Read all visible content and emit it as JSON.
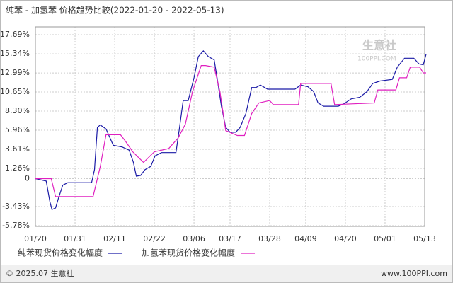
{
  "chart_data": {
    "type": "line",
    "title": "纯苯 - 加氢苯 价格趋势比较(2022-01-20 - 2022-05-13)",
    "watermark": [
      "生意社",
      "100PPI.COM"
    ],
    "footer_left": "© 2025.07 生意社",
    "footer_right": "www.100PPI.com",
    "xlim": [
      0,
      108
    ],
    "xticks": [
      {
        "value": 0,
        "label": "01/20"
      },
      {
        "value": 11,
        "label": "01/31"
      },
      {
        "value": 22,
        "label": "02/11"
      },
      {
        "value": 33,
        "label": "02/22"
      },
      {
        "value": 44,
        "label": "03/06"
      },
      {
        "value": 54,
        "label": "03/17"
      },
      {
        "value": 65,
        "label": "03/28"
      },
      {
        "value": 75,
        "label": "04/09"
      },
      {
        "value": 86,
        "label": "04/20"
      },
      {
        "value": 97,
        "label": "05/01"
      },
      {
        "value": 108,
        "label": "05/13"
      }
    ],
    "ylim": [
      -5.87,
      18.65
    ],
    "yticks": [
      {
        "value": 17.69,
        "label": "17.69%"
      },
      {
        "value": 15.34,
        "label": "15.34%"
      },
      {
        "value": 12.99,
        "label": "12.99%"
      },
      {
        "value": 10.65,
        "label": "10.65%"
      },
      {
        "value": 8.3,
        "label": "8.30%"
      },
      {
        "value": 5.96,
        "label": "5.96%"
      },
      {
        "value": 3.61,
        "label": "3.61%"
      },
      {
        "value": 1.26,
        "label": "1.26%"
      },
      0,
      {
        "value": -3.43,
        "label": "-3.43%"
      },
      {
        "value": -5.78,
        "label": "-5.78%"
      }
    ],
    "grid": true,
    "series": [
      {
        "name": "纯苯现货价格变化幅度",
        "color": "#1a1aa6",
        "x": [
          0,
          3,
          4,
          4.6,
          5.6,
          6.4,
          7.6,
          9,
          15.6,
          16.4,
          17.2,
          18,
          19.6,
          21.6,
          24,
          26,
          27.2,
          28,
          29.2,
          30.4,
          32,
          33.2,
          35,
          39,
          40,
          41,
          42.4,
          44,
          45.2,
          46.6,
          48,
          49.6,
          50.4,
          51.6,
          52.8,
          54,
          55.6,
          56.8,
          58.4,
          60,
          61.2,
          62.4,
          64.4,
          72,
          73.6,
          75.6,
          77.2,
          78.4,
          80,
          84,
          85.6,
          87.6,
          90,
          92,
          93.6,
          95.6,
          99,
          100.4,
          102.4,
          105,
          106.4,
          107.6,
          108.4
        ],
        "values": [
          0,
          -0.3,
          -2.8,
          -3.8,
          -3.6,
          -2.4,
          -0.8,
          -0.5,
          -0.5,
          1.1,
          6.3,
          6.6,
          6.1,
          4.1,
          3.9,
          3.5,
          2.0,
          0.3,
          0.4,
          1.1,
          1.5,
          2.8,
          3.2,
          3.2,
          6.3,
          9.6,
          9.6,
          12.4,
          15.0,
          15.7,
          15.0,
          14.6,
          12.4,
          8.9,
          6.3,
          5.7,
          5.7,
          6.3,
          8.0,
          11.2,
          11.2,
          11.5,
          11.0,
          11.0,
          11.5,
          11.3,
          10.7,
          9.3,
          8.9,
          8.9,
          9.2,
          9.8,
          10.0,
          10.7,
          11.7,
          12.0,
          12.2,
          13.7,
          14.8,
          14.8,
          14.1,
          14.0,
          15.3
        ]
      },
      {
        "name": "加氢苯现货价格变化幅度",
        "color": "#e020c0",
        "x": [
          0,
          4.4,
          5.6,
          16,
          18,
          19.6,
          23.6,
          25,
          27,
          30,
          33,
          37,
          39.6,
          41.6,
          43.6,
          46,
          47.2,
          49.6,
          51.2,
          52.8,
          56,
          58,
          60,
          62,
          65,
          66,
          73,
          73.6,
          82,
          83,
          94,
          95,
          100,
          101,
          103,
          104,
          106.6,
          107.6,
          108.4
        ],
        "values": [
          0,
          0,
          -2.2,
          -2.2,
          1.5,
          5.4,
          5.4,
          4.6,
          3.3,
          2.0,
          3.3,
          3.7,
          5.0,
          6.7,
          10.7,
          13.9,
          13.9,
          13.7,
          10.7,
          5.9,
          5.3,
          5.3,
          8.0,
          9.3,
          9.6,
          9.1,
          9.1,
          11.7,
          11.7,
          9.1,
          9.3,
          10.9,
          10.9,
          12.4,
          12.4,
          13.7,
          13.7,
          13.0,
          13.0
        ]
      }
    ]
  }
}
